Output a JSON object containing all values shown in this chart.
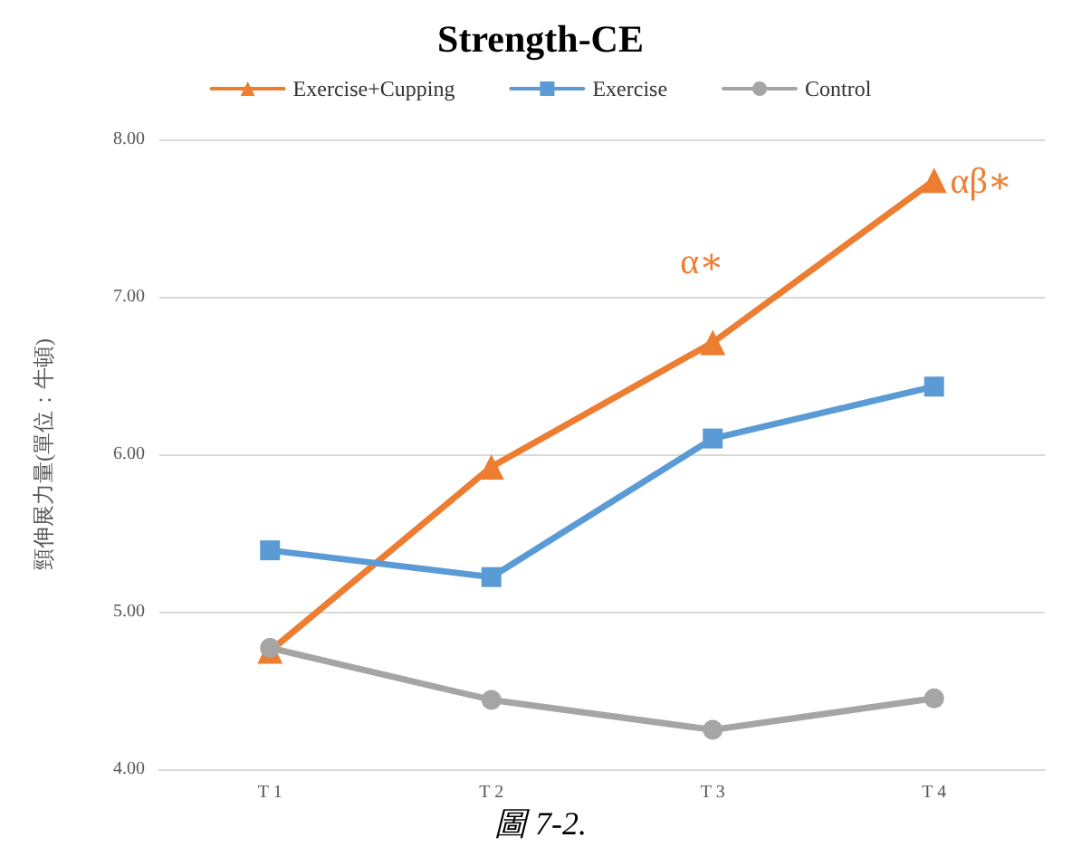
{
  "chart_data": {
    "type": "line",
    "title": "Strength-CE",
    "ylabel": "頸伸展力量(單位：牛頓)",
    "categories": [
      "T 1",
      "T 2",
      "T 3",
      "T 4"
    ],
    "series": [
      {
        "name": "Exercise+Cupping",
        "color": "#ed7d31",
        "marker": "triangle",
        "values": [
          4.75,
          5.92,
          6.71,
          7.74
        ]
      },
      {
        "name": "Exercise",
        "color": "#5b9bd5",
        "marker": "square",
        "values": [
          5.39,
          5.22,
          6.1,
          6.43
        ]
      },
      {
        "name": "Control",
        "color": "#a5a5a5",
        "marker": "circle",
        "values": [
          4.77,
          4.44,
          4.25,
          4.45
        ]
      }
    ],
    "ylim": [
      4,
      8
    ],
    "yticks": [
      {
        "value": 4,
        "label": "4.00"
      },
      {
        "value": 5,
        "label": "5.00"
      },
      {
        "value": 6,
        "label": "6.00"
      },
      {
        "value": 7,
        "label": "7.00"
      },
      {
        "value": 8,
        "label": "8.00"
      }
    ],
    "grid": "y",
    "legend": "top",
    "line_style": "solid",
    "annotations": [
      {
        "text": "α∗",
        "x": "T 3",
        "y": 6.71
      },
      {
        "text": "αβ∗",
        "x": "T 4",
        "y": 7.74
      },
      "圖 7-2."
    ]
  }
}
